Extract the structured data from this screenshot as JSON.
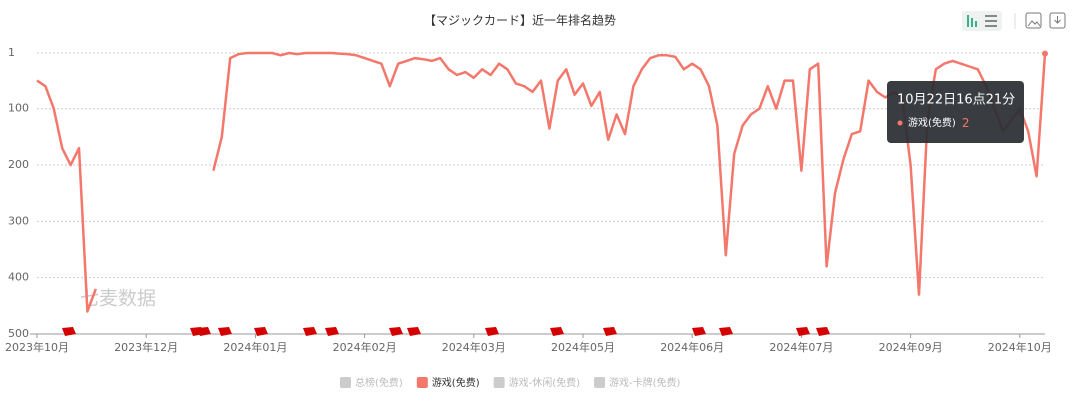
{
  "chart_data": {
    "type": "line",
    "title": "【マジックカード】近一年排名趋势",
    "categories": [
      "2023年10月",
      null,
      null,
      null,
      null,
      null,
      null,
      null,
      null,
      null,
      null,
      null,
      null,
      "2023年12月",
      null,
      null,
      null,
      null,
      null,
      null,
      null,
      null,
      null,
      null,
      null,
      null,
      "2024年01月",
      null,
      null,
      null,
      null,
      null,
      null,
      null,
      null,
      null,
      null,
      null,
      null,
      "2024年02月",
      null,
      null,
      null,
      null,
      null,
      null,
      null,
      null,
      null,
      null,
      null,
      null,
      "2024年03月",
      null,
      null,
      null,
      null,
      null,
      null,
      null,
      null,
      null,
      null,
      null,
      null,
      "2024年05月",
      null,
      null,
      null,
      null,
      null,
      null,
      null,
      null,
      null,
      null,
      null,
      null,
      "2024年06月",
      null,
      null,
      null,
      null,
      null,
      null,
      null,
      null,
      null,
      null,
      null,
      null,
      "2024年07月",
      null,
      null,
      null,
      null,
      null,
      null,
      null,
      null,
      null,
      null,
      null,
      null,
      "2024年09月",
      null,
      null,
      null,
      null,
      null,
      null,
      null,
      null,
      null,
      null,
      null,
      null,
      "2024年10月",
      null,
      null,
      null
    ],
    "series": [
      {
        "name": "游戏(免费)",
        "color": "#f4776b",
        "values": [
          50,
          60,
          100,
          170,
          200,
          170,
          460,
          420,
          null,
          null,
          null,
          null,
          null,
          null,
          null,
          null,
          null,
          null,
          null,
          null,
          null,
          210,
          150,
          10,
          3,
          1,
          1,
          1,
          1,
          5,
          1,
          3,
          1,
          1,
          1,
          1,
          2,
          3,
          5,
          10,
          15,
          20,
          60,
          20,
          15,
          10,
          12,
          15,
          10,
          30,
          40,
          35,
          45,
          30,
          40,
          20,
          30,
          55,
          60,
          70,
          50,
          135,
          50,
          30,
          75,
          55,
          95,
          70,
          155,
          110,
          145,
          60,
          30,
          10,
          5,
          5,
          8,
          30,
          20,
          30,
          60,
          130,
          360,
          180,
          130,
          110,
          100,
          60,
          100,
          50,
          50,
          210,
          30,
          20,
          380,
          250,
          190,
          145,
          140,
          50,
          70,
          80,
          70,
          80,
          200,
          430,
          120,
          30,
          20,
          15,
          20,
          25,
          30,
          60,
          100,
          140,
          120,
          100,
          140,
          220,
          2
        ]
      }
    ],
    "ylim": [
      1,
      500
    ],
    "y_reversed": true,
    "yticks": [
      1,
      100,
      200,
      300,
      400,
      500
    ],
    "grid": true,
    "legend": [
      {
        "name": "总榜(免费)",
        "color": "#ccc"
      },
      {
        "name": "游戏(免费)",
        "color": "#f4776b"
      },
      {
        "name": "游戏-休闲(免费)",
        "color": "#ccc"
      },
      {
        "name": "游戏-卡牌(免费)",
        "color": "#ccc"
      }
    ],
    "tooltip": {
      "title": "10月22日16点21分",
      "series": "游戏(免费)",
      "value": 2
    },
    "watermark": "七麦数据"
  }
}
